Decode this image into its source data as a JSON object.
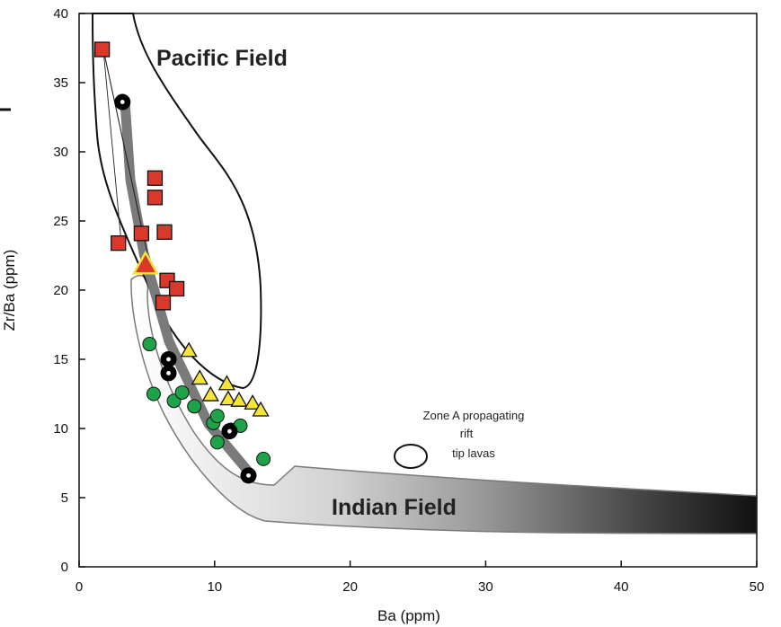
{
  "chart_data": {
    "type": "scatter",
    "title": "",
    "xlabel": "Ba (ppm)",
    "ylabel": "Zr/Ba (ppm)",
    "xlim": [
      0,
      50
    ],
    "ylim": [
      0,
      40
    ],
    "x_ticks": [
      "0",
      "10",
      "20",
      "30",
      "40",
      "50"
    ],
    "y_ticks": [
      "0",
      "5",
      "10",
      "15",
      "20",
      "25",
      "30",
      "35",
      "40"
    ],
    "grid": false,
    "field_labels": {
      "pacific": "Pacific Field",
      "indian": "Indian Field"
    },
    "legend": {
      "text_lines": [
        "Zone A propagating",
        "rift",
        "tip lavas"
      ]
    },
    "colors": {
      "square_fill": "#d9382a",
      "triangle_fill": "#f5e53a",
      "circle_fill": "#1fa34a",
      "bullseye": "#000000",
      "trend_band": "#7a7a7a",
      "indian_gradient_start": "#ffffff",
      "indian_gradient_end": "#111111"
    },
    "series": [
      {
        "marker": "square",
        "points": [
          [
            1.7,
            37.4
          ],
          [
            2.9,
            23.4
          ],
          [
            4.6,
            24.1
          ],
          [
            5.6,
            28.1
          ],
          [
            5.6,
            26.7
          ],
          [
            6.3,
            24.2
          ],
          [
            6.5,
            20.7
          ],
          [
            7.2,
            20.1
          ],
          [
            6.2,
            19.1
          ]
        ]
      },
      {
        "marker": "triangle-large",
        "points": [
          [
            4.9,
            21.8
          ]
        ]
      },
      {
        "marker": "triangle",
        "points": [
          [
            8.1,
            15.6
          ],
          [
            8.9,
            13.6
          ],
          [
            9.7,
            12.4
          ],
          [
            10.9,
            13.2
          ],
          [
            11.0,
            12.1
          ],
          [
            11.8,
            12.0
          ],
          [
            12.8,
            11.8
          ],
          [
            13.4,
            11.3
          ]
        ]
      },
      {
        "marker": "circle",
        "points": [
          [
            5.2,
            16.1
          ],
          [
            5.5,
            12.5
          ],
          [
            7.0,
            12.0
          ],
          [
            7.6,
            12.6
          ],
          [
            8.5,
            11.6
          ],
          [
            9.9,
            10.4
          ],
          [
            10.2,
            10.9
          ],
          [
            10.2,
            9.0
          ],
          [
            11.2,
            9.9
          ],
          [
            11.9,
            10.2
          ],
          [
            13.6,
            7.8
          ]
        ]
      },
      {
        "marker": "bullseye",
        "points": [
          [
            3.2,
            33.6
          ],
          [
            6.6,
            15.0
          ],
          [
            6.6,
            14.0
          ],
          [
            11.1,
            9.8
          ],
          [
            12.5,
            6.6
          ]
        ]
      }
    ]
  }
}
